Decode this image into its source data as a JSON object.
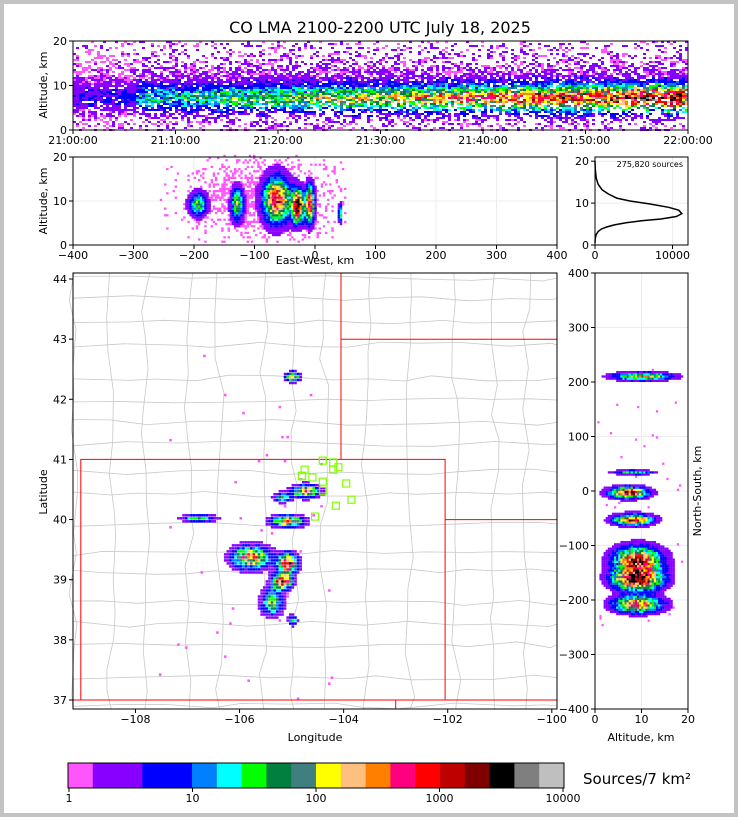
{
  "title": "CO LMA 2100-2200 UTC July 18, 2025",
  "colorbar_label": "Sources/7 km²",
  "colors": {
    "scale": [
      "#ff55ff",
      "#8800ff",
      "#8000ff",
      "#0000ff",
      "#0000ff",
      "#007fff",
      "#00ffff",
      "#00ff00",
      "#007f3f",
      "#3f7f7f",
      "#ffff00",
      "#ffbf7f",
      "#ff7f00",
      "#ff007f",
      "#ff0000",
      "#bf0000",
      "#7f0000",
      "#000000",
      "#7f7f7f",
      "#bfbfbf",
      "#ffffff"
    ],
    "state_lines": "#ff0000",
    "county_lines": "#c8c8c8",
    "station_marker": "#80ff00",
    "histogram_line": "#000000"
  },
  "chart_data": [
    {
      "id": "time_altitude",
      "type": "heatmap",
      "ylabel": "Altitude, km",
      "xlabel": "",
      "x_ticks": [
        "21:00:00",
        "21:10:00",
        "21:20:00",
        "21:30:00",
        "21:40:00",
        "21:50:00",
        "22:00:00"
      ],
      "y_ticks": [
        "0",
        "10",
        "20"
      ],
      "xlim": [
        "21:00:00",
        "22:00:00"
      ],
      "ylim": [
        0,
        20
      ]
    },
    {
      "id": "east_west_altitude",
      "type": "heatmap",
      "xlabel": "East-West, km",
      "ylabel": "Altitude, km",
      "x_ticks": [
        "−400",
        "−300",
        "−200",
        "−100",
        "0",
        "100",
        "200",
        "300",
        "400"
      ],
      "y_ticks": [
        "0",
        "10",
        "20"
      ],
      "xlim": [
        -400,
        400
      ],
      "ylim": [
        0,
        20
      ]
    },
    {
      "id": "altitude_histogram",
      "type": "line",
      "annotation": "275,820 sources",
      "x_ticks": [
        "0",
        "10000"
      ],
      "y_ticks": [
        "0",
        "10",
        "20"
      ],
      "xlim": [
        0,
        12000
      ],
      "ylim": [
        0,
        21
      ],
      "x": [
        0,
        30,
        150,
        400,
        800,
        1500,
        2500,
        4000,
        6000,
        8500,
        10500,
        11200,
        10800,
        9500,
        7000,
        4500,
        2800,
        1700,
        900,
        400,
        150,
        40,
        0
      ],
      "y": [
        0.5,
        1.5,
        2.5,
        3.2,
        3.8,
        4.3,
        4.8,
        5.3,
        5.8,
        6.2,
        6.8,
        7.5,
        8.3,
        9.0,
        9.8,
        10.5,
        11.2,
        12.2,
        13.2,
        14.5,
        16.0,
        18.0,
        20.0
      ]
    },
    {
      "id": "plan_view",
      "type": "heatmap",
      "xlabel": "Longitude",
      "ylabel": "Latitude",
      "x_ticks": [
        "−108",
        "−106",
        "−104",
        "−102",
        "−100"
      ],
      "y_ticks": [
        "37",
        "38",
        "39",
        "40",
        "41",
        "42",
        "43",
        "44"
      ],
      "xlim": [
        -109.2,
        -99.9
      ],
      "ylim": [
        36.85,
        44.1
      ],
      "stations": [
        {
          "lon": -104.4,
          "lat": 40.98
        },
        {
          "lon": -104.2,
          "lat": 40.95
        },
        {
          "lon": -104.1,
          "lat": 40.87
        },
        {
          "lon": -104.2,
          "lat": 40.83
        },
        {
          "lon": -104.75,
          "lat": 40.83
        },
        {
          "lon": -104.8,
          "lat": 40.72
        },
        {
          "lon": -104.6,
          "lat": 40.7
        },
        {
          "lon": -104.4,
          "lat": 40.63
        },
        {
          "lon": -103.95,
          "lat": 40.6
        },
        {
          "lon": -104.4,
          "lat": 40.48
        },
        {
          "lon": -103.85,
          "lat": 40.33
        },
        {
          "lon": -104.15,
          "lat": 40.23
        },
        {
          "lon": -104.55,
          "lat": 40.05
        },
        {
          "lon": -104.8,
          "lat": 40.73
        }
      ]
    },
    {
      "id": "altitude_north_south",
      "type": "heatmap",
      "xlabel": "Altitude, km",
      "ylabel": "North-South, km",
      "x_ticks": [
        "0",
        "10",
        "20"
      ],
      "y_ticks": [
        "−400",
        "−300",
        "−200",
        "−100",
        "0",
        "100",
        "200",
        "300",
        "400"
      ],
      "xlim": [
        0,
        20
      ],
      "ylim": [
        -400,
        400
      ]
    },
    {
      "id": "colorbar",
      "type": "heatmap",
      "tick_labels": [
        "1",
        "10",
        "100",
        "1000",
        "10000"
      ],
      "range": [
        1,
        10000
      ],
      "log_scale": true
    }
  ]
}
